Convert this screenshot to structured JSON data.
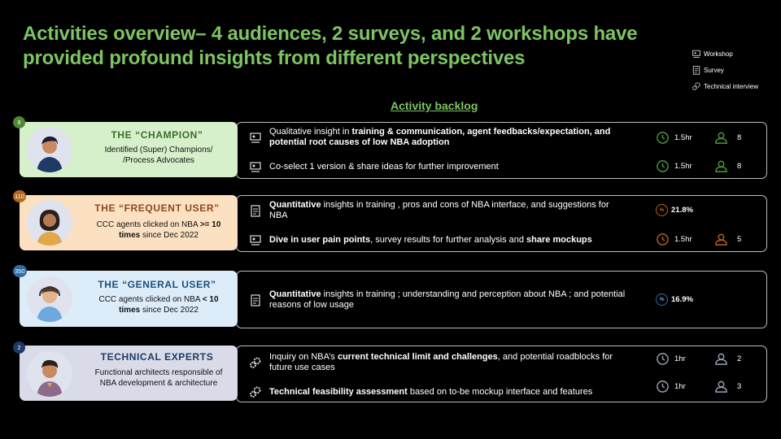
{
  "title": {
    "line1": "Activities overview–  4 audiences, 2 surveys, and 2 workshops have",
    "line2": "provided profound insights from different perspectives"
  },
  "legend": {
    "workshop": "Workshop",
    "survey": "Survey",
    "interview": "Technical interview"
  },
  "backlog_title": "Activity backlog",
  "audiences": [
    {
      "count": "8",
      "name": "THE “CHAMPION”",
      "desc_line1": "Identified (Super) Champions/",
      "desc_line2": "/Process Advocates",
      "card_color": "#d7f0cc",
      "name_color": "#3b6e2a",
      "badge_color": "#4c8a35"
    },
    {
      "count": "110",
      "name": "THE “FREQUENT USER”",
      "desc_pre": "CCC agents clicked on NBA ",
      "desc_bold1": ">= 10",
      "desc_bold2": "times",
      "desc_post": " since Dec 2022",
      "card_color": "#fbe1c2",
      "name_color": "#8a4a1a",
      "badge_color": "#b5651d"
    },
    {
      "count": "350",
      "name": "THE “GENERAL USER”",
      "desc_pre": "CCC agents clicked on NBA ",
      "desc_bold1": "< 10",
      "desc_bold2": "times",
      "desc_post": " since Dec 2022",
      "card_color": "#dcecf9",
      "name_color": "#1d4f7a",
      "badge_color": "#2e6ea6"
    },
    {
      "count": "2",
      "name": "TECHNICAL EXPERTS",
      "desc_line1": "Functional architects responsible of",
      "desc_line2": "NBA development & architecture",
      "card_color": "#d9dce8",
      "name_color": "#1f3a66",
      "badge_color": "#1f3a66"
    }
  ],
  "activities": {
    "champion_1": {
      "text_pre": "Qualitative insight in ",
      "text_bold": "training & communication, agent feedbacks/expectation, and potential root causes of low NBA adoption",
      "duration": "1.5hr",
      "people": "8"
    },
    "champion_2": {
      "text": "Co-select 1 version & share ideas for further improvement",
      "duration": "1.5hr",
      "people": "8"
    },
    "frequent_1": {
      "text_bold": "Quantitative",
      "text_post": " insights in training , pros and cons of NBA interface, and suggestions for NBA",
      "pct": "21.8%",
      "pct_symbol": "%"
    },
    "frequent_2": {
      "text_bold1": "Dive in user pain points",
      "text_mid": ", survey results for further analysis and ",
      "text_bold2": "share mockups",
      "duration": "1.5hr",
      "people": "5"
    },
    "general_1": {
      "text_bold": "Quantitative",
      "text_post": " insights in training ; understanding and perception about NBA ; and potential reasons of low usage",
      "pct": "16.9%",
      "pct_symbol": "%"
    },
    "tech_1": {
      "text_pre": "Inquiry on NBA’s ",
      "text_bold": "current technical limit and challenges",
      "text_post": ", and potential roadblocks for future use cases",
      "duration": "1hr",
      "people": "2"
    },
    "tech_2": {
      "text_bold": "Technical feasibility assessment",
      "text_post": " based on to-be mockup interface and features",
      "duration": "1hr",
      "people": "3"
    }
  },
  "colors": {
    "accent_green": "#7dc462",
    "champion_icon": "#4c9a3a",
    "frequent_icon": "#b5651d",
    "tech_icon": "#9aa3b8",
    "general_icon": "#2e6ea6"
  }
}
